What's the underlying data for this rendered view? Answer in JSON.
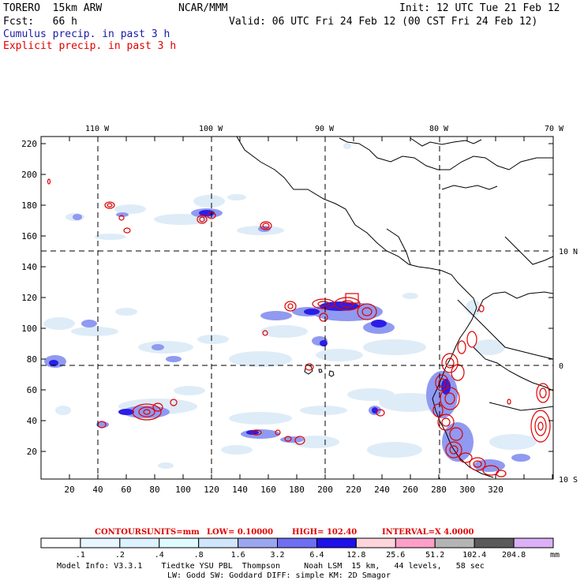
{
  "header": {
    "model": "TORERO  15km ARW",
    "center": "NCAR/MMM",
    "init": "Init: 12 UTC Tue 21 Feb 12",
    "fcst": "Fcst:   66 h",
    "valid": "Valid: 06 UTC Fri 24 Feb 12 (00 CST Fri 24 Feb 12)",
    "legend_cumulus": "Cumulus precip. in past 3 h",
    "legend_explicit": "Explicit precip. in past 3 h"
  },
  "colors": {
    "cumulus_label": "#1a1aa6",
    "explicit_label": "#e00000",
    "contour": "#e00000",
    "coast": "#000000"
  },
  "map": {
    "lon_labels": [
      "110 W",
      "100 W",
      "90 W",
      "80 W",
      "70 W"
    ],
    "lat_labels": [
      "10 N",
      "0",
      "10 S"
    ],
    "y_ticks": [
      "220",
      "200",
      "180",
      "160",
      "140",
      "120",
      "100",
      "80",
      "60",
      "40",
      "20"
    ],
    "x_ticks": [
      "20",
      "40",
      "60",
      "80",
      "100",
      "120",
      "140",
      "160",
      "180",
      "200",
      "220",
      "240",
      "260",
      "280",
      "300",
      "320"
    ]
  },
  "contours_line": {
    "label": "CONTOURS:",
    "units": "UNITS=mm",
    "low": "LOW= 0.10000",
    "high": "HIGH=  102.40",
    "interval": "INTERVAL=X  4.0000"
  },
  "colorbar": {
    "labels": [
      ".1",
      ".2",
      ".4",
      ".8",
      "1.6",
      "3.2",
      "6.4",
      "12.8",
      "25.6",
      "51.2",
      "102.4",
      "204.8"
    ],
    "unit": "mm",
    "colors": [
      "#ffffff",
      "#e8f6ff",
      "#dcf2ff",
      "#e0fbff",
      "#cfe6fb",
      "#9aa6f0",
      "#6e6ef2",
      "#1e10e8",
      "#ffd4dc",
      "#ff9ec8",
      "#b4b4b4",
      "#5a5a5a",
      "#dcb0f6"
    ]
  },
  "footer": {
    "line1": "Model Info: V3.3.1    Tiedtke YSU PBL  Thompson     Noah LSM  15 km,   44 levels,   58 sec",
    "line2": "LW: Godd SW: Goddard DIFF: simple KM: 2D Smagor"
  }
}
